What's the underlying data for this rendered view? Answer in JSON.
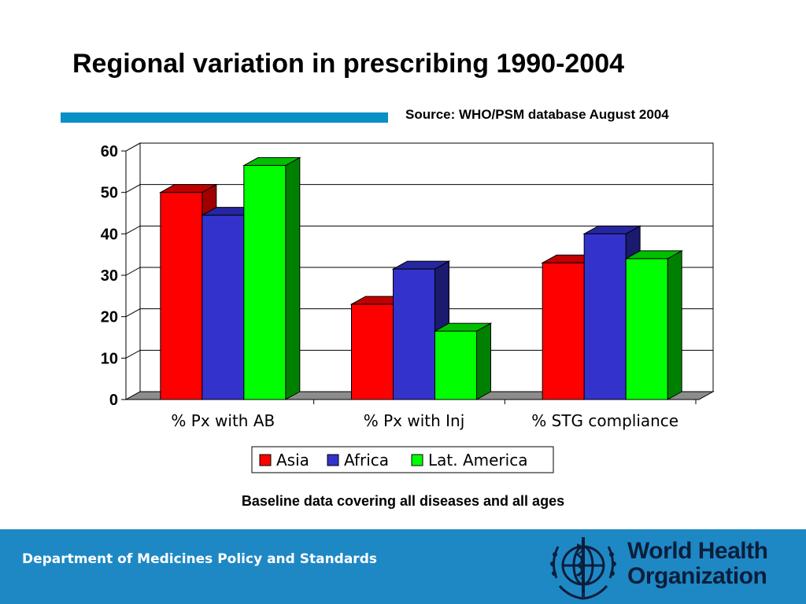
{
  "slide": {
    "title": "Regional variation in prescribing 1990-2004",
    "source": "Source: WHO/PSM database August 2004",
    "note": "Baseline data covering all diseases and all ages"
  },
  "footer": {
    "department": "Department of Medicines Policy and Standards",
    "org_line1": "World Health",
    "org_line2": "Organization",
    "logo_icon": "who-emblem-icon"
  },
  "colors": {
    "accent_rule": "#0a8fc6",
    "footer_bg": "#1e88c5"
  },
  "chart_data": {
    "type": "bar",
    "style": "3d-clustered",
    "title": "",
    "xlabel": "",
    "ylabel": "",
    "categories": [
      "% Px with AB",
      "% Px with Inj",
      "% STG compliance"
    ],
    "series": [
      {
        "name": "Asia",
        "values": [
          50,
          23,
          33
        ],
        "color": "#ff0000",
        "side": "#a00000",
        "top": "#c00000"
      },
      {
        "name": "Africa",
        "values": [
          44.5,
          31.5,
          40
        ],
        "color": "#3333cc",
        "side": "#1a1a6e",
        "top": "#2626a0"
      },
      {
        "name": "Lat. America",
        "values": [
          56.5,
          16.5,
          34
        ],
        "color": "#00ff00",
        "side": "#008000",
        "top": "#00c000"
      }
    ],
    "yticks": [
      "0",
      "10",
      "20",
      "30",
      "40",
      "50",
      "60"
    ],
    "ylim": [
      0,
      60
    ],
    "grid": true,
    "legend": "bottom-center"
  }
}
